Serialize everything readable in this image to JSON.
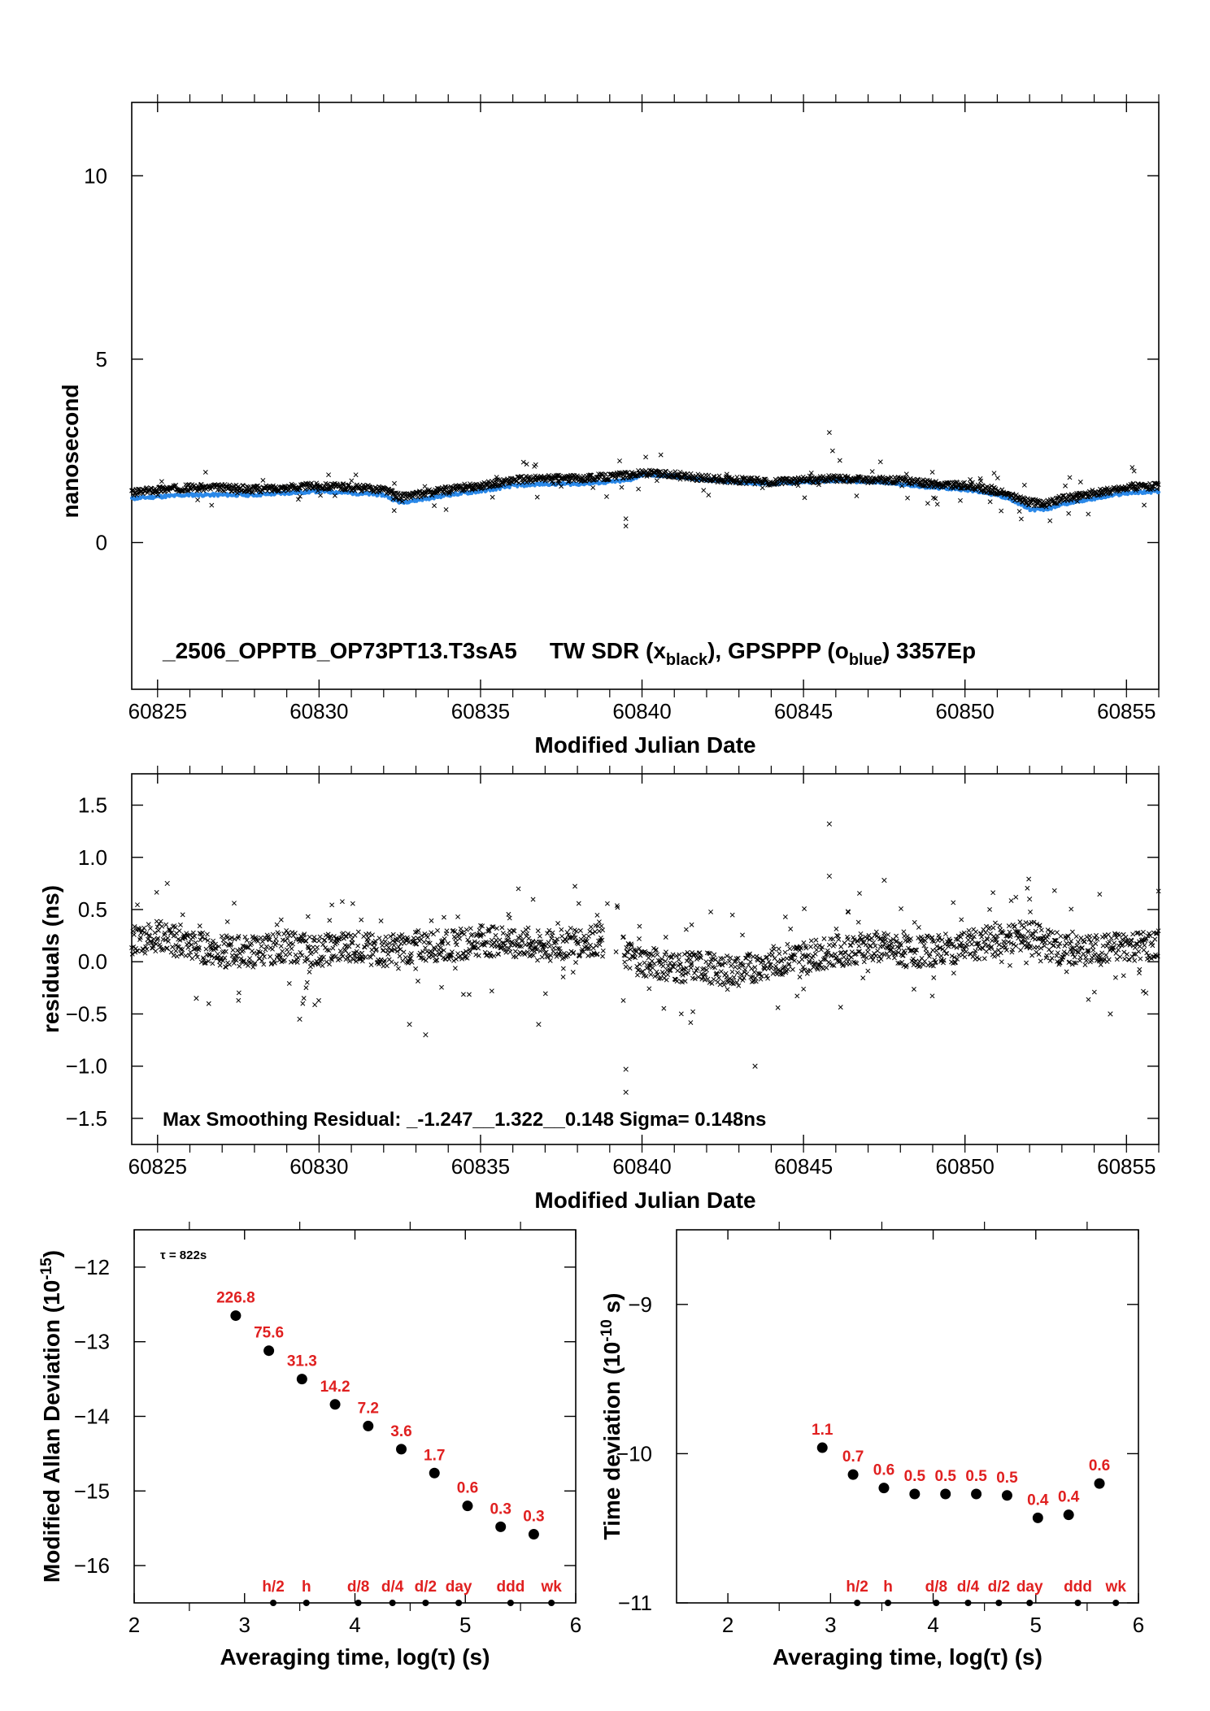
{
  "chart_data": [
    {
      "type": "scatter",
      "title": "",
      "xlabel": "Modified Julian Date",
      "ylabel": "nanosecond",
      "xlim": [
        60824.2,
        60856
      ],
      "ylim": [
        -4,
        12
      ],
      "yticks": [
        0,
        5,
        10
      ],
      "xticks": [
        60825,
        60830,
        60835,
        60840,
        60845,
        60850,
        60855
      ],
      "annotation": {
        "text": "_2506_OPPTB_OP73PT13.T3sA5",
        "tw_prefix": "TW SDR (x",
        "tw_sub": "black",
        "mid": "),  GPSPPP (o",
        "gps_sub": "blue",
        "suffix": ")  3357Ep"
      },
      "series": [
        {
          "name": "TW SDR",
          "marker": "x",
          "color": "#000000",
          "x": [
            60824.2,
            60825,
            60826,
            60827,
            60828,
            60829,
            60830,
            60831,
            60832,
            60832.5,
            60833,
            60834,
            60835,
            60836,
            60837,
            60838,
            60839,
            60839.6,
            60840,
            60841,
            60842,
            60843,
            60844,
            60845,
            60846,
            60847,
            60848,
            60849,
            60850,
            60851,
            60851.5,
            60852,
            60852.5,
            60853,
            60854,
            60855,
            60856
          ],
          "y": [
            1.35,
            1.45,
            1.5,
            1.5,
            1.45,
            1.5,
            1.55,
            1.5,
            1.45,
            1.25,
            1.3,
            1.45,
            1.55,
            1.7,
            1.75,
            1.75,
            1.8,
            1.85,
            1.9,
            1.85,
            1.75,
            1.7,
            1.65,
            1.7,
            1.75,
            1.7,
            1.7,
            1.6,
            1.55,
            1.4,
            1.25,
            1.1,
            1.05,
            1.2,
            1.35,
            1.5,
            1.55
          ]
        },
        {
          "name": "GPSPPP",
          "marker": "o",
          "color": "#2a88e8",
          "x": [
            60824.2,
            60825,
            60826,
            60827,
            60828,
            60829,
            60830,
            60831,
            60832,
            60832.5,
            60833,
            60834,
            60835,
            60836,
            60837,
            60838,
            60839,
            60839.6,
            60840,
            60841,
            60842,
            60843,
            60844,
            60845,
            60846,
            60847,
            60848,
            60849,
            60850,
            60851,
            60851.5,
            60852,
            60852.5,
            60853,
            60854,
            60855,
            60856
          ],
          "y": [
            1.2,
            1.25,
            1.3,
            1.3,
            1.3,
            1.35,
            1.4,
            1.35,
            1.3,
            1.1,
            1.15,
            1.3,
            1.4,
            1.55,
            1.6,
            1.6,
            1.65,
            1.7,
            1.85,
            1.8,
            1.7,
            1.65,
            1.6,
            1.65,
            1.7,
            1.65,
            1.6,
            1.5,
            1.45,
            1.3,
            1.15,
            0.9,
            0.9,
            1.05,
            1.2,
            1.35,
            1.4
          ]
        }
      ]
    },
    {
      "type": "scatter",
      "title": "",
      "xlabel": "Modified Julian Date",
      "ylabel": "residuals (ns)",
      "xlim": [
        60824.2,
        60856
      ],
      "ylim": [
        -1.75,
        1.8
      ],
      "yticks": [
        1.5,
        1.0,
        0.5,
        0.0,
        -0.5,
        -1.0,
        -1.5
      ],
      "ytick_labels": [
        "1.5",
        "1.0",
        "0.5",
        "0.0",
        "−0.5",
        "−1.0",
        "−1.5"
      ],
      "xticks": [
        60825,
        60830,
        60835,
        60840,
        60845,
        60850,
        60855
      ],
      "annotation": "Max Smoothing Residual: _-1.247__1.322__0.148  Sigma= 0.148ns",
      "series": [
        {
          "name": "residuals",
          "marker": "x",
          "color": "#000000",
          "x": [
            60824.2,
            60825,
            60826,
            60827,
            60828,
            60829,
            60830,
            60831,
            60832,
            60833,
            60834,
            60835,
            60836,
            60837,
            60838,
            60839,
            60839.6,
            60840,
            60841,
            60842,
            60843,
            60844,
            60845,
            60846,
            60847,
            60848,
            60849,
            60850,
            60851,
            60852,
            60853,
            60854,
            60855,
            60856
          ],
          "y": [
            0.2,
            0.25,
            0.15,
            0.1,
            0.1,
            0.15,
            0.1,
            0.15,
            0.1,
            0.15,
            0.15,
            0.2,
            0.2,
            0.15,
            0.2,
            0.2,
            0.05,
            0.0,
            -0.05,
            -0.05,
            -0.1,
            0.0,
            0.05,
            0.1,
            0.15,
            0.1,
            0.1,
            0.15,
            0.2,
            0.25,
            0.1,
            0.1,
            0.15,
            0.15
          ]
        },
        {
          "name": "outliers",
          "marker": "x",
          "color": "#000000",
          "x": [
            60825.3,
            60826.2,
            60829.4,
            60832.8,
            60833.3,
            60836.8,
            60839.5,
            60839.5,
            60843.5,
            60845.8,
            60845.8,
            60847.5,
            60852,
            60854.5,
            60855.6
          ],
          "y": [
            0.75,
            -0.35,
            -0.55,
            -0.6,
            -0.7,
            -0.6,
            -1.03,
            -1.25,
            -1.0,
            1.32,
            0.82,
            0.78,
            0.6,
            -0.5,
            -0.3
          ]
        }
      ]
    },
    {
      "type": "scatter",
      "title": "",
      "xlabel": "Averaging time, log(τ) (s)",
      "ylabel": "Modified Allan Deviation (10",
      "ylabel_sup": "-15",
      "ylabel_end": ")",
      "xlim": [
        2,
        6
      ],
      "ylim": [
        -16.5,
        -11.5
      ],
      "xticks": [
        2,
        3,
        4,
        5,
        6
      ],
      "yticks": [
        -12,
        -13,
        -14,
        -15,
        -16
      ],
      "ytick_labels": [
        "−12",
        "−13",
        "−14",
        "−15",
        "−16"
      ],
      "tau_note": "τ = 822s",
      "points": [
        {
          "x": 2.92,
          "y": -12.65,
          "label": "226.8"
        },
        {
          "x": 3.22,
          "y": -13.12,
          "label": "75.6"
        },
        {
          "x": 3.52,
          "y": -13.5,
          "label": "31.3"
        },
        {
          "x": 3.82,
          "y": -13.84,
          "label": "14.2"
        },
        {
          "x": 4.12,
          "y": -14.13,
          "label": "7.2"
        },
        {
          "x": 4.42,
          "y": -14.44,
          "label": "3.6"
        },
        {
          "x": 4.72,
          "y": -14.76,
          "label": "1.7"
        },
        {
          "x": 5.02,
          "y": -15.2,
          "label": "0.6"
        },
        {
          "x": 5.32,
          "y": -15.48,
          "label": "0.3"
        },
        {
          "x": 5.62,
          "y": -15.58,
          "label": "0.3"
        }
      ],
      "markers": [
        {
          "x": 3.26,
          "label": "h/2"
        },
        {
          "x": 3.56,
          "label": "h"
        },
        {
          "x": 4.03,
          "label": "d/8"
        },
        {
          "x": 4.34,
          "label": "d/4"
        },
        {
          "x": 4.64,
          "label": "d/2"
        },
        {
          "x": 4.94,
          "label": "day"
        },
        {
          "x": 5.41,
          "label": "ddd"
        },
        {
          "x": 5.78,
          "label": "wk"
        }
      ]
    },
    {
      "type": "scatter",
      "title": "",
      "xlabel": "Averaging time, log(τ) (s)",
      "ylabel": "Time deviation (10",
      "ylabel_sup": "-10",
      "ylabel_end": " s)",
      "xlim": [
        1.5,
        6
      ],
      "ylim": [
        -11,
        -8.5
      ],
      "xticks": [
        2,
        3,
        4,
        5,
        6
      ],
      "yticks": [
        -9,
        -10,
        -11
      ],
      "ytick_labels": [
        "−9",
        "−10",
        "−11"
      ],
      "points": [
        {
          "x": 2.92,
          "y": -9.96,
          "label": "1.1"
        },
        {
          "x": 3.22,
          "y": -10.14,
          "label": "0.7"
        },
        {
          "x": 3.52,
          "y": -10.23,
          "label": "0.6"
        },
        {
          "x": 3.82,
          "y": -10.27,
          "label": "0.5"
        },
        {
          "x": 4.12,
          "y": -10.27,
          "label": "0.5"
        },
        {
          "x": 4.42,
          "y": -10.27,
          "label": "0.5"
        },
        {
          "x": 4.72,
          "y": -10.28,
          "label": "0.5"
        },
        {
          "x": 5.02,
          "y": -10.43,
          "label": "0.4"
        },
        {
          "x": 5.32,
          "y": -10.41,
          "label": "0.4"
        },
        {
          "x": 5.62,
          "y": -10.2,
          "label": "0.6"
        }
      ],
      "markers": [
        {
          "x": 3.26,
          "label": "h/2"
        },
        {
          "x": 3.56,
          "label": "h"
        },
        {
          "x": 4.03,
          "label": "d/8"
        },
        {
          "x": 4.34,
          "label": "d/4"
        },
        {
          "x": 4.64,
          "label": "d/2"
        },
        {
          "x": 4.94,
          "label": "day"
        },
        {
          "x": 5.41,
          "label": "ddd"
        },
        {
          "x": 5.78,
          "label": "wk"
        }
      ]
    }
  ]
}
